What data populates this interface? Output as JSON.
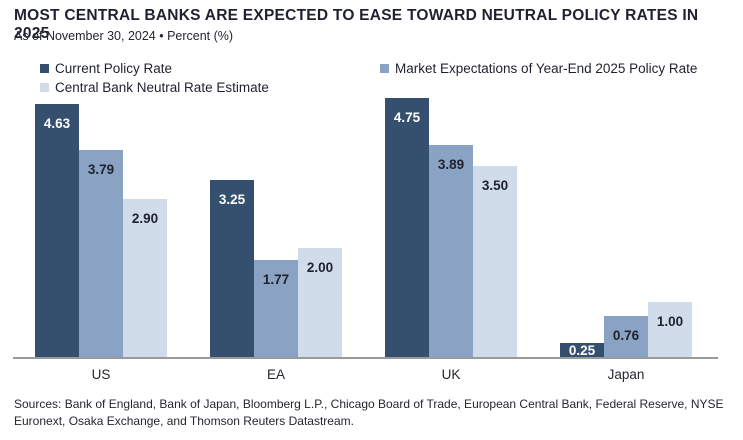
{
  "header": {
    "title": "MOST CENTRAL BANKS ARE EXPECTED TO EASE TOWARD NEUTRAL POLICY RATES IN 2025",
    "subtitle": "As of November 30, 2024 • Percent (%)"
  },
  "legend": {
    "items": [
      {
        "label": "Current Policy Rate",
        "color": "#35506f"
      },
      {
        "label": "Market Expectations of Year-End 2025 Policy Rate",
        "color": "#8aa3c4"
      },
      {
        "label": "Central Bank Neutral Rate Estimate",
        "color": "#d0dce9"
      }
    ]
  },
  "chart_data": {
    "type": "bar",
    "title": "MOST CENTRAL BANKS ARE EXPECTED TO EASE TOWARD NEUTRAL POLICY RATES IN 2025",
    "subtitle": "As of November 30, 2024 • Percent (%)",
    "categories": [
      "US",
      "EA",
      "UK",
      "Japan"
    ],
    "series": [
      {
        "name": "Current Policy Rate",
        "color": "#35506f",
        "label_color": "#ffffff",
        "values": [
          4.63,
          3.25,
          4.75,
          0.25
        ]
      },
      {
        "name": "Market Expectations of Year-End 2025 Policy Rate",
        "color": "#8aa3c4",
        "label_color": "#20222e",
        "values": [
          3.79,
          1.77,
          3.89,
          0.76
        ]
      },
      {
        "name": "Central Bank Neutral Rate Estimate",
        "color": "#d0dce9",
        "label_color": "#20222e",
        "values": [
          2.9,
          2.0,
          3.5,
          1.0
        ]
      }
    ],
    "xlabel": "",
    "ylabel": "Percent (%)",
    "ylim": [
      0,
      4.8
    ],
    "grid": false,
    "legend_position": "top",
    "value_labels": "inside-top, two decimals"
  },
  "footer": {
    "sources": "Sources: Bank of England, Bank of Japan, Bloomberg L.P., Chicago Board of Trade, European Central Bank, Federal Reserve, NYSE Euronext, Osaka Exchange, and Thomson Reuters Datastream."
  },
  "colors": {
    "axis_line": "#9a9a9a",
    "title_text": "#1f2130",
    "body_text": "#25272f",
    "background": "#ffffff"
  }
}
